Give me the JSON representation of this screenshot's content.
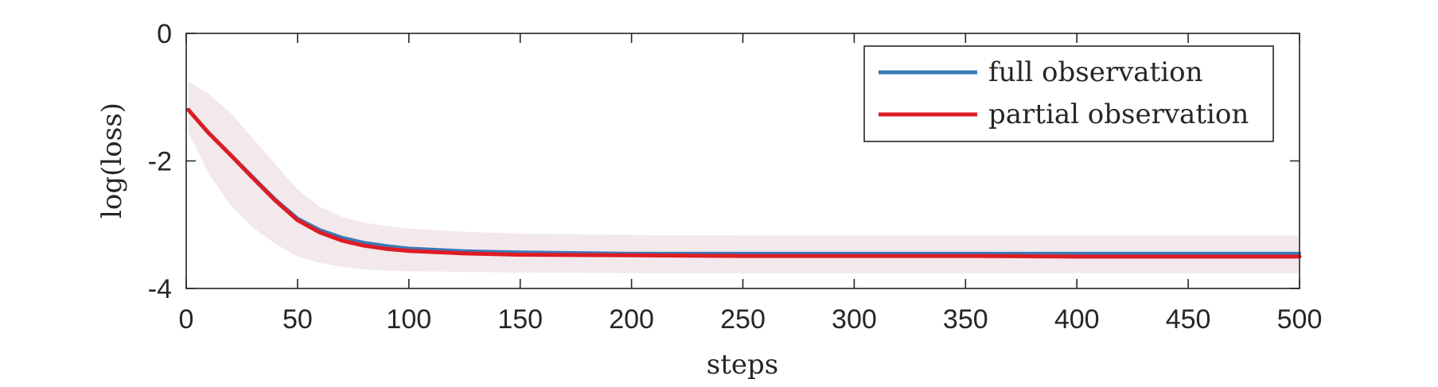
{
  "chart_data": {
    "type": "line",
    "title": "",
    "xlabel": "steps",
    "ylabel": "log(loss)",
    "xlim": [
      0,
      500
    ],
    "ylim": [
      -4,
      0
    ],
    "xticks": [
      0,
      50,
      100,
      150,
      200,
      250,
      300,
      350,
      400,
      450,
      500
    ],
    "yticks": [
      0,
      -2,
      -4
    ],
    "xtick_labels": [
      "0",
      "50",
      "100",
      "150",
      "200",
      "250",
      "300",
      "350",
      "400",
      "450",
      "500"
    ],
    "ytick_labels": [
      "0",
      "-2",
      "-4"
    ],
    "grid": false,
    "legend_position": "top-right",
    "x": [
      1,
      10,
      20,
      30,
      40,
      50,
      60,
      70,
      80,
      90,
      100,
      125,
      150,
      200,
      250,
      300,
      350,
      400,
      450,
      500
    ],
    "series": [
      {
        "name": "full observation",
        "color": "#3a7ab8",
        "values": [
          -1.2,
          -1.55,
          -1.9,
          -2.25,
          -2.6,
          -2.9,
          -3.08,
          -3.2,
          -3.28,
          -3.33,
          -3.37,
          -3.41,
          -3.43,
          -3.45,
          -3.45,
          -3.45,
          -3.45,
          -3.45,
          -3.45,
          -3.45
        ]
      },
      {
        "name": "partial observation",
        "color": "#dd1c24",
        "values": [
          -1.2,
          -1.56,
          -1.91,
          -2.27,
          -2.62,
          -2.93,
          -3.12,
          -3.25,
          -3.33,
          -3.38,
          -3.41,
          -3.45,
          -3.47,
          -3.48,
          -3.49,
          -3.49,
          -3.49,
          -3.5,
          -3.5,
          -3.5
        ]
      }
    ],
    "band": {
      "color": "#ead5dc",
      "upper": [
        -0.75,
        -0.95,
        -1.25,
        -1.65,
        -2.05,
        -2.45,
        -2.72,
        -2.88,
        -2.97,
        -3.02,
        -3.06,
        -3.11,
        -3.14,
        -3.16,
        -3.17,
        -3.17,
        -3.17,
        -3.17,
        -3.17,
        -3.17
      ],
      "lower": [
        -1.55,
        -2.2,
        -2.7,
        -3.05,
        -3.3,
        -3.5,
        -3.6,
        -3.66,
        -3.7,
        -3.72,
        -3.73,
        -3.74,
        -3.75,
        -3.76,
        -3.76,
        -3.76,
        -3.76,
        -3.76,
        -3.76,
        -3.76
      ]
    }
  }
}
